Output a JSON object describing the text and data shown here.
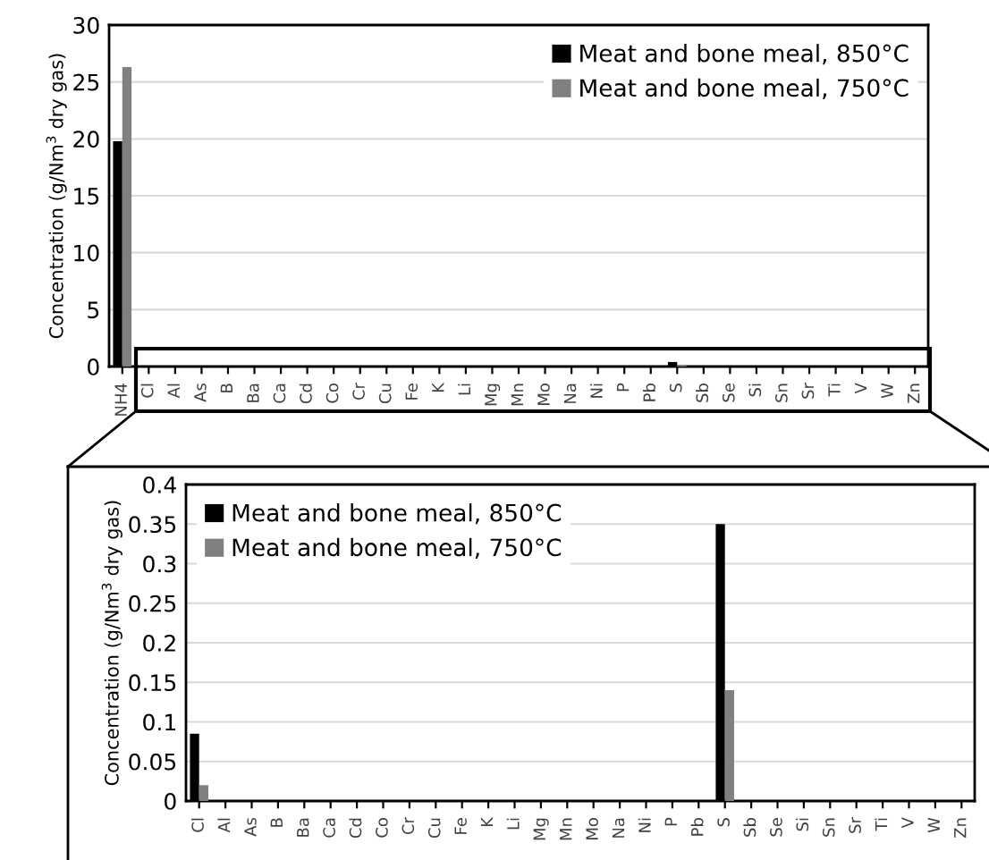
{
  "chart_data": [
    {
      "type": "bar",
      "ylabel": "Concentration (g/Nm$^{3}$ dry gas)",
      "categories": [
        "NH4",
        "Cl",
        "Al",
        "As",
        "B",
        "Ba",
        "Ca",
        "Cd",
        "Co",
        "Cr",
        "Cu",
        "Fe",
        "K",
        "Li",
        "Mg",
        "Mn",
        "Mo",
        "Na",
        "Ni",
        "P",
        "Pb",
        "S",
        "Sb",
        "Se",
        "Si",
        "Sn",
        "Sr",
        "Ti",
        "V",
        "W",
        "Zn"
      ],
      "series": [
        {
          "name": "Meat and bone meal, 850°C",
          "color": "#000000",
          "values": [
            19.8,
            null,
            0,
            0,
            0,
            0,
            0,
            0,
            0,
            0,
            0,
            0,
            0,
            0,
            0,
            0,
            0,
            0,
            0,
            0,
            0,
            0.4,
            0,
            0,
            0,
            0,
            0,
            0,
            0,
            0,
            0
          ]
        },
        {
          "name": "Meat and bone meal, 750°C",
          "color": "#808080",
          "values": [
            26.3,
            null,
            0,
            0,
            0,
            0,
            0,
            0,
            0,
            0,
            0,
            0,
            0,
            0,
            0,
            0,
            0,
            0,
            0,
            0,
            0,
            0.1,
            0,
            0,
            0,
            0,
            0,
            0,
            0,
            0,
            0
          ]
        }
      ],
      "ylim": [
        0,
        30
      ],
      "yticks": [
        0,
        5,
        10,
        15,
        20,
        25,
        30
      ],
      "grid": "y",
      "legend": "top right"
    },
    {
      "type": "bar",
      "ylabel": "Concentration (g/Nm$^{3}$ dry gas)",
      "categories": [
        "Cl",
        "Al",
        "As",
        "B",
        "Ba",
        "Ca",
        "Cd",
        "Co",
        "Cr",
        "Cu",
        "Fe",
        "K",
        "Li",
        "Mg",
        "Mn",
        "Mo",
        "Na",
        "Ni",
        "P",
        "Pb",
        "S",
        "Sb",
        "Se",
        "Si",
        "Sn",
        "Sr",
        "Ti",
        "V",
        "W",
        "Zn"
      ],
      "series": [
        {
          "name": "Meat and bone meal, 850°C",
          "color": "#000000",
          "values": [
            0.085,
            0,
            0,
            0,
            0,
            0,
            0,
            0,
            0,
            0,
            0,
            0,
            0,
            0,
            0,
            0,
            0,
            0,
            0,
            0,
            0.35,
            0,
            0,
            0,
            0,
            0,
            0,
            0,
            0,
            0
          ]
        },
        {
          "name": "Meat and bone meal, 750°C",
          "color": "#808080",
          "values": [
            0.02,
            0,
            0,
            0,
            0,
            0,
            0,
            0,
            0,
            0,
            0,
            0,
            0,
            0,
            0,
            0,
            0,
            0,
            0,
            0,
            0.14,
            0,
            0,
            0,
            0,
            0,
            0,
            0,
            0,
            0
          ]
        }
      ],
      "ylim": [
        0,
        0.4
      ],
      "yticks": [
        0,
        0.05,
        0.1,
        0.15,
        0.2,
        0.25,
        0.3,
        0.35,
        0.4
      ],
      "grid": "y",
      "legend": "top left"
    }
  ]
}
